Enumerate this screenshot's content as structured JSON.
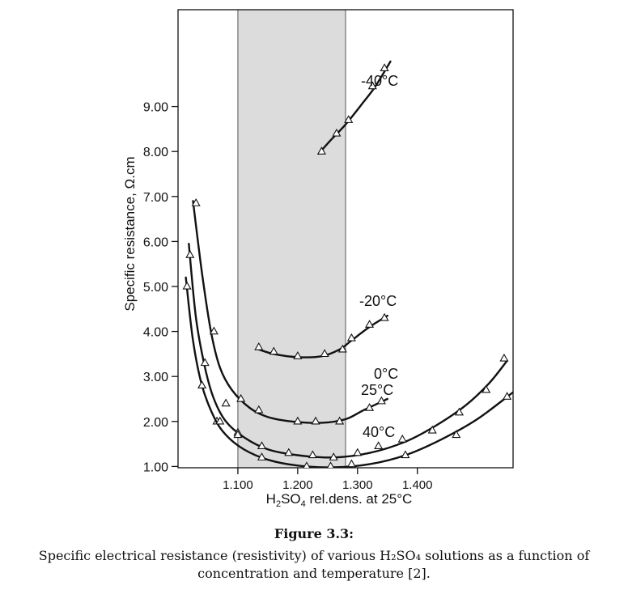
{
  "chart_data": {
    "type": "line",
    "xlabel": "H2SO4 rel.dens. at 25°C",
    "ylabel": "Specific resistance, Ω.cm",
    "xlim": [
      1.0,
      1.56
    ],
    "ylim": [
      0,
      10.0
    ],
    "x_ticks": [
      {
        "value": 1.1,
        "label": "1.100"
      },
      {
        "value": 1.2,
        "label": "1.200"
      },
      {
        "value": 1.3,
        "label": "1.300"
      },
      {
        "value": 1.4,
        "label": "1.400"
      }
    ],
    "y_ticks": [
      {
        "value": 1.0,
        "label": "1.00"
      },
      {
        "value": 2.0,
        "label": "2.00"
      },
      {
        "value": 3.0,
        "label": "3.00"
      },
      {
        "value": 4.0,
        "label": "4.00"
      },
      {
        "value": 5.0,
        "label": "5.00"
      },
      {
        "value": 6.0,
        "label": "6.00"
      },
      {
        "value": 7.0,
        "label": "7.00"
      },
      {
        "value": 8.0,
        "label": "8.00"
      },
      {
        "value": 9.0,
        "label": "9.00"
      }
    ],
    "shaded_range": [
      1.1,
      1.28
    ],
    "marker": "open-triangle",
    "series": [
      {
        "name": "-40°C",
        "x": [
          1.24,
          1.265,
          1.285,
          1.325,
          1.345
        ],
        "y": [
          8.0,
          8.4,
          8.7,
          9.45,
          9.85
        ],
        "curve": {
          "x": [
            1.235,
            1.255,
            1.28,
            1.31,
            1.33,
            1.355
          ],
          "y": [
            7.95,
            8.25,
            8.6,
            9.1,
            9.45,
            10.0
          ]
        }
      },
      {
        "name": "-20°C",
        "x": [
          1.135,
          1.16,
          1.2,
          1.245,
          1.275,
          1.29,
          1.32,
          1.345
        ],
        "y": [
          3.65,
          3.55,
          3.45,
          3.5,
          3.6,
          3.85,
          4.15,
          4.3
        ],
        "curve": {
          "x": [
            1.135,
            1.16,
            1.2,
            1.24,
            1.27,
            1.29,
            1.32,
            1.35
          ],
          "y": [
            3.6,
            3.5,
            3.43,
            3.45,
            3.6,
            3.8,
            4.1,
            4.35
          ]
        }
      },
      {
        "name": "0°C",
        "x": [
          1.03,
          1.06,
          1.08,
          1.105,
          1.135,
          1.2,
          1.23,
          1.27,
          1.32,
          1.34
        ],
        "y": [
          6.85,
          4.0,
          2.4,
          2.5,
          2.25,
          2.0,
          2.0,
          2.0,
          2.3,
          2.45
        ],
        "curve": {
          "x": [
            1.025,
            1.04,
            1.055,
            1.07,
            1.09,
            1.12,
            1.15,
            1.19,
            1.24,
            1.28,
            1.31,
            1.35
          ],
          "y": [
            6.9,
            5.3,
            4.0,
            3.2,
            2.7,
            2.3,
            2.1,
            2.0,
            1.97,
            2.05,
            2.25,
            2.5
          ]
        }
      },
      {
        "name": "25°C",
        "x": [
          1.02,
          1.045,
          1.065,
          1.1,
          1.14,
          1.185,
          1.225,
          1.26,
          1.3,
          1.335,
          1.375,
          1.425,
          1.47,
          1.515,
          1.545
        ],
        "y": [
          5.7,
          3.3,
          2.0,
          1.75,
          1.45,
          1.3,
          1.25,
          1.2,
          1.3,
          1.45,
          1.6,
          1.8,
          2.2,
          2.7,
          3.4
        ],
        "curve": {
          "x": [
            1.018,
            1.03,
            1.045,
            1.06,
            1.08,
            1.11,
            1.15,
            1.2,
            1.26,
            1.32,
            1.38,
            1.43,
            1.48,
            1.52,
            1.55
          ],
          "y": [
            5.95,
            4.3,
            3.2,
            2.5,
            2.0,
            1.65,
            1.38,
            1.25,
            1.2,
            1.3,
            1.55,
            1.9,
            2.35,
            2.85,
            3.35
          ]
        }
      },
      {
        "name": "40°C",
        "x": [
          1.015,
          1.04,
          1.07,
          1.1,
          1.14,
          1.215,
          1.255,
          1.29,
          1.38,
          1.465,
          1.55
        ],
        "y": [
          5.0,
          2.8,
          2.0,
          1.7,
          1.2,
          1.0,
          1.0,
          1.05,
          1.25,
          1.7,
          2.55
        ],
        "curve": {
          "x": [
            1.013,
            1.025,
            1.04,
            1.06,
            1.08,
            1.11,
            1.15,
            1.2,
            1.26,
            1.32,
            1.38,
            1.44,
            1.5,
            1.56
          ],
          "y": [
            5.2,
            3.8,
            2.8,
            2.1,
            1.7,
            1.38,
            1.15,
            1.02,
            0.98,
            1.05,
            1.25,
            1.6,
            2.05,
            2.65
          ]
        }
      }
    ]
  },
  "caption": {
    "title": "Figure 3.3:",
    "text": "Specific electrical resistance (resistivity) of various H₂SO₄ solutions as a function of concentration and temperature [2]."
  }
}
